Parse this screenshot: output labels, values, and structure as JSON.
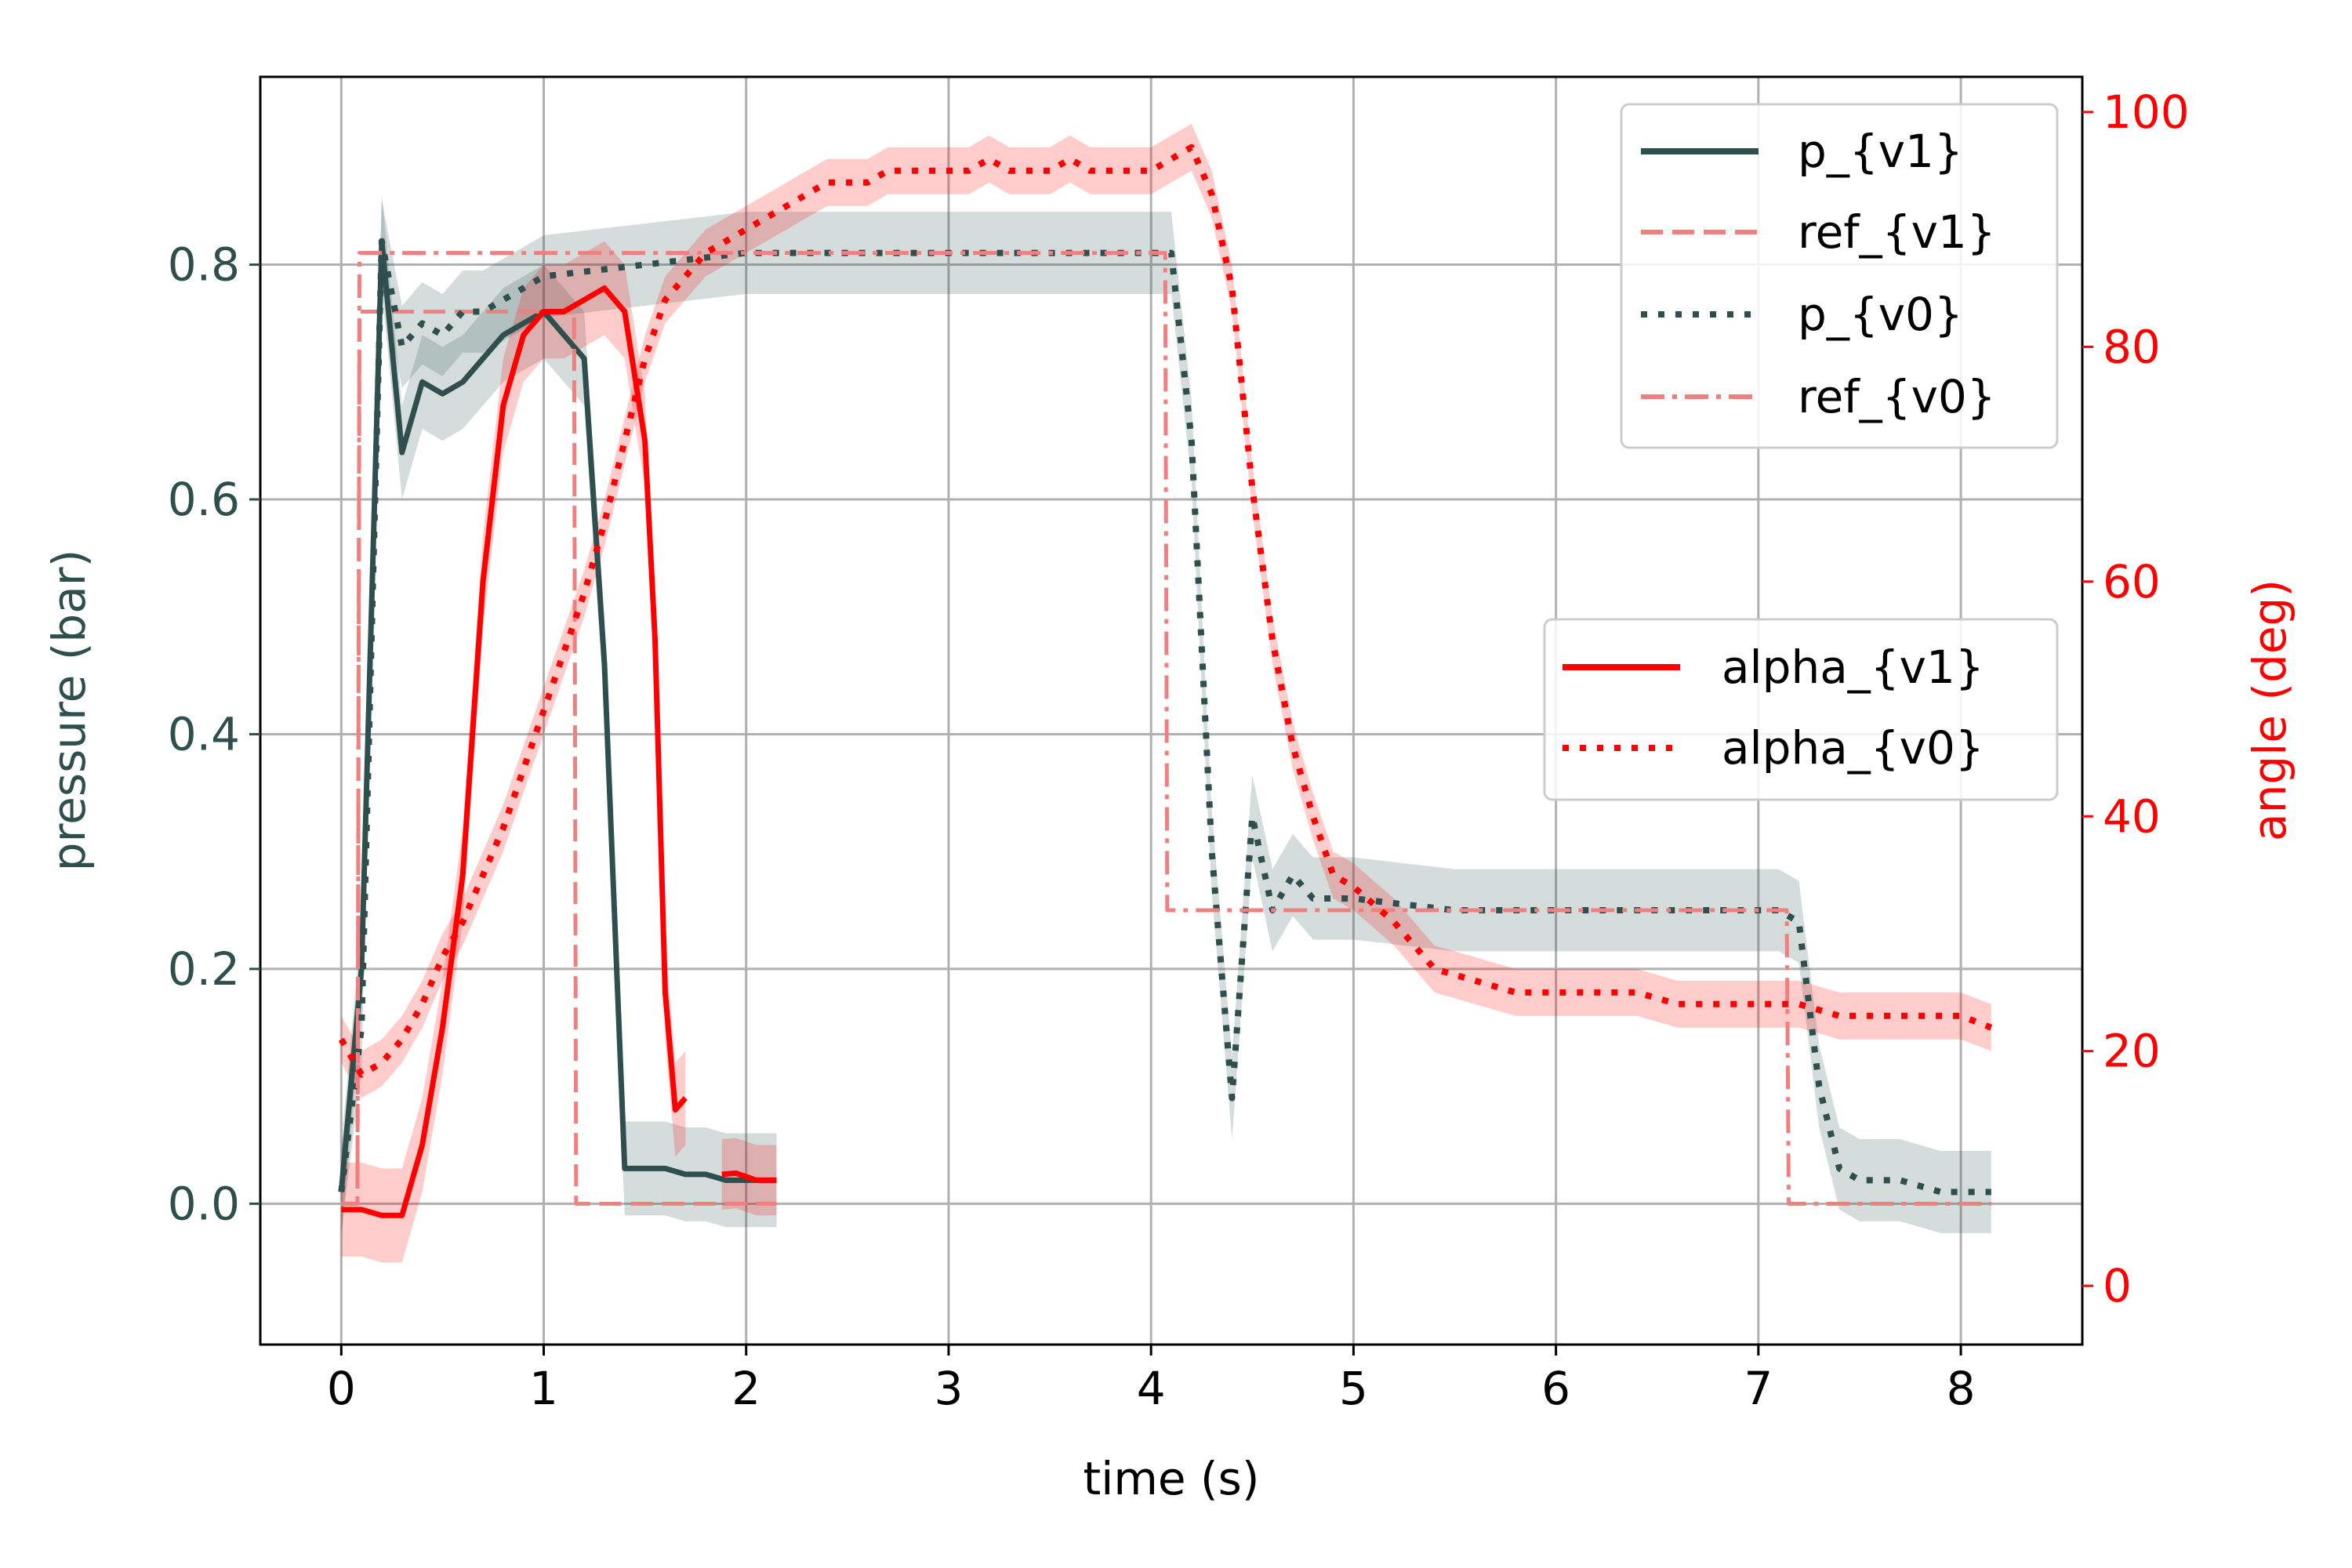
{
  "chart_data": {
    "type": "line",
    "xlabel": "time (s)",
    "ylabel_left": "pressure (bar)",
    "ylabel_right": "angle (deg)",
    "xlim": [
      -0.4,
      8.6
    ],
    "ylim_left": [
      -0.12,
      0.96
    ],
    "ylim_right": [
      -5,
      103
    ],
    "x_ticks": [
      0,
      1,
      2,
      3,
      4,
      5,
      6,
      7,
      8
    ],
    "y_left_ticks": [
      0.0,
      0.2,
      0.4,
      0.6,
      0.8
    ],
    "y_left_tick_labels": [
      "0.0",
      "0.2",
      "0.4",
      "0.6",
      "0.8"
    ],
    "y_right_ticks": [
      0,
      20,
      40,
      60,
      80,
      100
    ],
    "grid": true,
    "left_axis_color": "#2f4f4f",
    "right_axis_color": "#ff0000",
    "legend_top_right": [
      "p_{v1}",
      "ref_{v1}",
      "p_{v0}",
      "ref_{v0}"
    ],
    "legend_mid_right": [
      "alpha_{v1}",
      "alpha_{v0}"
    ],
    "series": [
      {
        "name": "p_{v1}",
        "axis": "left",
        "color": "#2f4f4f",
        "style": "solid",
        "x": [
          0.0,
          0.1,
          0.2,
          0.3,
          0.4,
          0.5,
          0.6,
          0.7,
          0.8,
          0.9,
          1.0,
          1.1,
          1.2,
          1.3,
          1.4,
          1.5,
          1.6,
          1.7,
          1.8,
          1.9,
          2.0,
          2.1,
          2.15
        ],
        "y": [
          0.01,
          0.2,
          0.82,
          0.64,
          0.7,
          0.69,
          0.7,
          0.72,
          0.74,
          0.75,
          0.76,
          0.74,
          0.72,
          0.46,
          0.03,
          0.03,
          0.03,
          0.025,
          0.025,
          0.02,
          0.02,
          0.02,
          0.02
        ],
        "band": 0.04
      },
      {
        "name": "ref_{v1}",
        "axis": "left",
        "color": "#f08080",
        "style": "dashed",
        "x": [
          0.0,
          0.08,
          0.09,
          0.99,
          1.0,
          1.14,
          1.15,
          1.16,
          2.15
        ],
        "y": [
          0.0,
          0.0,
          0.76,
          0.76,
          0.76,
          0.76,
          0.76,
          0.0,
          0.0
        ]
      },
      {
        "name": "p_{v0}",
        "axis": "left",
        "color": "#2f4f4f",
        "style": "dotted",
        "x": [
          0.0,
          0.1,
          0.2,
          0.3,
          0.4,
          0.5,
          0.6,
          0.7,
          0.8,
          0.9,
          1.0,
          1.5,
          2.0,
          2.5,
          3.0,
          3.5,
          4.0,
          4.1,
          4.2,
          4.3,
          4.4,
          4.5,
          4.6,
          4.7,
          4.8,
          4.9,
          5.0,
          5.5,
          6.0,
          6.5,
          7.0,
          7.1,
          7.2,
          7.3,
          7.4,
          7.5,
          7.6,
          7.7,
          7.8,
          7.9,
          8.0,
          8.15
        ],
        "y": [
          0.01,
          0.15,
          0.82,
          0.73,
          0.75,
          0.74,
          0.76,
          0.76,
          0.77,
          0.78,
          0.79,
          0.8,
          0.81,
          0.81,
          0.81,
          0.81,
          0.81,
          0.81,
          0.65,
          0.3,
          0.09,
          0.33,
          0.25,
          0.28,
          0.26,
          0.26,
          0.26,
          0.25,
          0.25,
          0.25,
          0.25,
          0.25,
          0.24,
          0.1,
          0.03,
          0.02,
          0.02,
          0.02,
          0.015,
          0.01,
          0.01,
          0.01
        ],
        "band": 0.035
      },
      {
        "name": "ref_{v0}",
        "axis": "left",
        "color": "#f08080",
        "style": "dashdot",
        "x": [
          0.0,
          0.08,
          0.09,
          4.0,
          4.01,
          4.07,
          4.08,
          7.05,
          7.06,
          7.14,
          7.15,
          8.15
        ],
        "y": [
          0.0,
          0.0,
          0.81,
          0.81,
          0.81,
          0.81,
          0.25,
          0.25,
          0.25,
          0.25,
          0.0,
          0.0
        ]
      },
      {
        "name": "alpha_{v1}",
        "axis": "right",
        "color": "#ff0000",
        "style": "solid",
        "x": [
          0.0,
          0.1,
          0.2,
          0.3,
          0.4,
          0.5,
          0.6,
          0.7,
          0.8,
          0.9,
          1.0,
          1.1,
          1.2,
          1.3,
          1.4,
          1.5,
          1.55,
          1.6,
          1.65,
          1.7
        ],
        "y": [
          6.5,
          6.5,
          6.0,
          6.0,
          12,
          22,
          35,
          60,
          75,
          81,
          83,
          83,
          84,
          85,
          83,
          72,
          55,
          25,
          15,
          16
        ],
        "band": 4
      },
      {
        "name": "alpha_{v1}",
        "axis": "right",
        "color": "#ff0000",
        "style": "solid",
        "x": [
          1.88,
          1.95,
          2.05,
          2.15
        ],
        "y": [
          9.5,
          9.6,
          9.0,
          9.0
        ],
        "band": 3
      },
      {
        "name": "alpha_{v0}",
        "axis": "right",
        "color": "#ff0000",
        "style": "dotted",
        "x": [
          0.0,
          0.1,
          0.2,
          0.3,
          0.4,
          0.5,
          0.6,
          0.7,
          0.8,
          0.9,
          1.0,
          1.1,
          1.2,
          1.3,
          1.4,
          1.5,
          1.6,
          1.7,
          1.8,
          1.9,
          2.0,
          2.1,
          2.2,
          2.3,
          2.4,
          2.5,
          2.6,
          2.7,
          2.8,
          2.9,
          3.0,
          3.1,
          3.2,
          3.3,
          3.4,
          3.5,
          3.6,
          3.7,
          3.8,
          3.9,
          4.0,
          4.1,
          4.2,
          4.3,
          4.4,
          4.5,
          4.6,
          4.7,
          4.8,
          4.9,
          5.0,
          5.2,
          5.4,
          5.6,
          5.8,
          6.0,
          6.2,
          6.4,
          6.6,
          6.8,
          7.0,
          7.2,
          7.4,
          7.6,
          7.8,
          8.0,
          8.15
        ],
        "y": [
          21,
          18,
          19,
          21,
          24,
          28,
          31,
          35,
          39,
          44,
          49,
          54,
          59,
          65,
          72,
          79,
          84,
          86,
          88,
          89,
          90,
          91,
          92,
          93,
          94,
          94,
          94,
          95,
          95,
          95,
          95,
          95,
          96,
          95,
          95,
          95,
          96,
          95,
          95,
          95,
          95,
          96,
          97,
          93,
          85,
          68,
          55,
          46,
          40,
          35,
          34,
          31,
          27,
          26,
          25,
          25,
          25,
          25,
          24,
          24,
          24,
          24,
          23,
          23,
          23,
          23,
          22
        ],
        "band": 2
      }
    ]
  }
}
